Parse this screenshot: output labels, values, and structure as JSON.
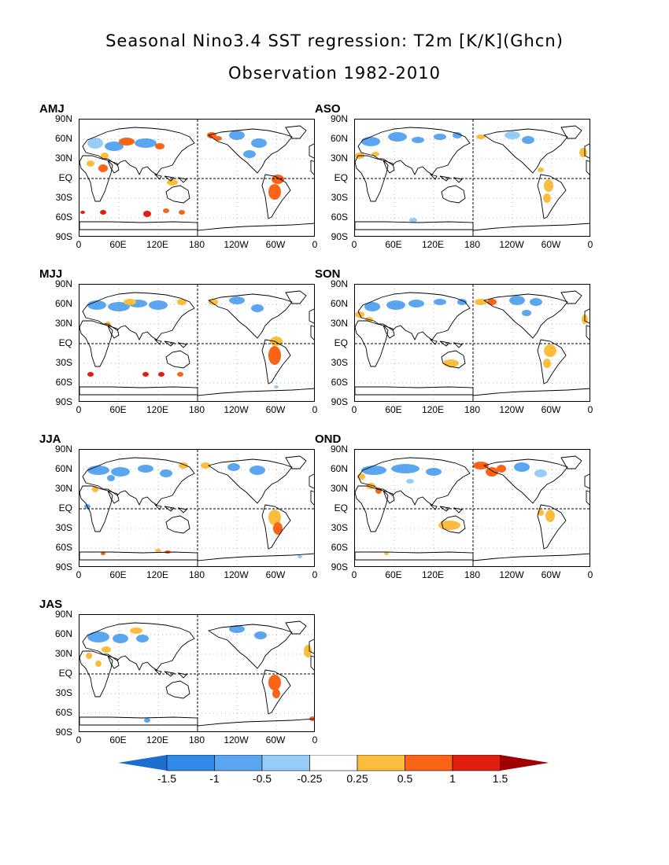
{
  "title": {
    "line1": "Seasonal Nino3.4 SST regression: T2m [K/K](Ghcn)",
    "line2": "Observation 1982-2010"
  },
  "axes": {
    "lat_ticks": [
      "90N",
      "60N",
      "30N",
      "EQ",
      "30S",
      "60S",
      "90S"
    ],
    "lon_ticks": [
      "0",
      "60E",
      "120E",
      "180",
      "120W",
      "60W",
      "0"
    ]
  },
  "panels": [
    {
      "label": "AMJ",
      "pattern": "amj"
    },
    {
      "label": "ASO",
      "pattern": "aso"
    },
    {
      "label": "MJJ",
      "pattern": "mjj"
    },
    {
      "label": "SON",
      "pattern": "son"
    },
    {
      "label": "JJA",
      "pattern": "jja"
    },
    {
      "label": "OND",
      "pattern": "ond"
    },
    {
      "label": "JAS",
      "pattern": "jas"
    }
  ],
  "colorbar": {
    "labels": [
      "-1.5",
      "-1",
      "-0.5",
      "-0.25",
      "0.25",
      "0.5",
      "1",
      "1.5"
    ],
    "colors": [
      "#1e6ed2",
      "#2f8ae8",
      "#5aa6f0",
      "#96ccf8",
      "#ffffff",
      "#fbbe3c",
      "#fa6414",
      "#e11e10",
      "#a00000"
    ]
  }
}
